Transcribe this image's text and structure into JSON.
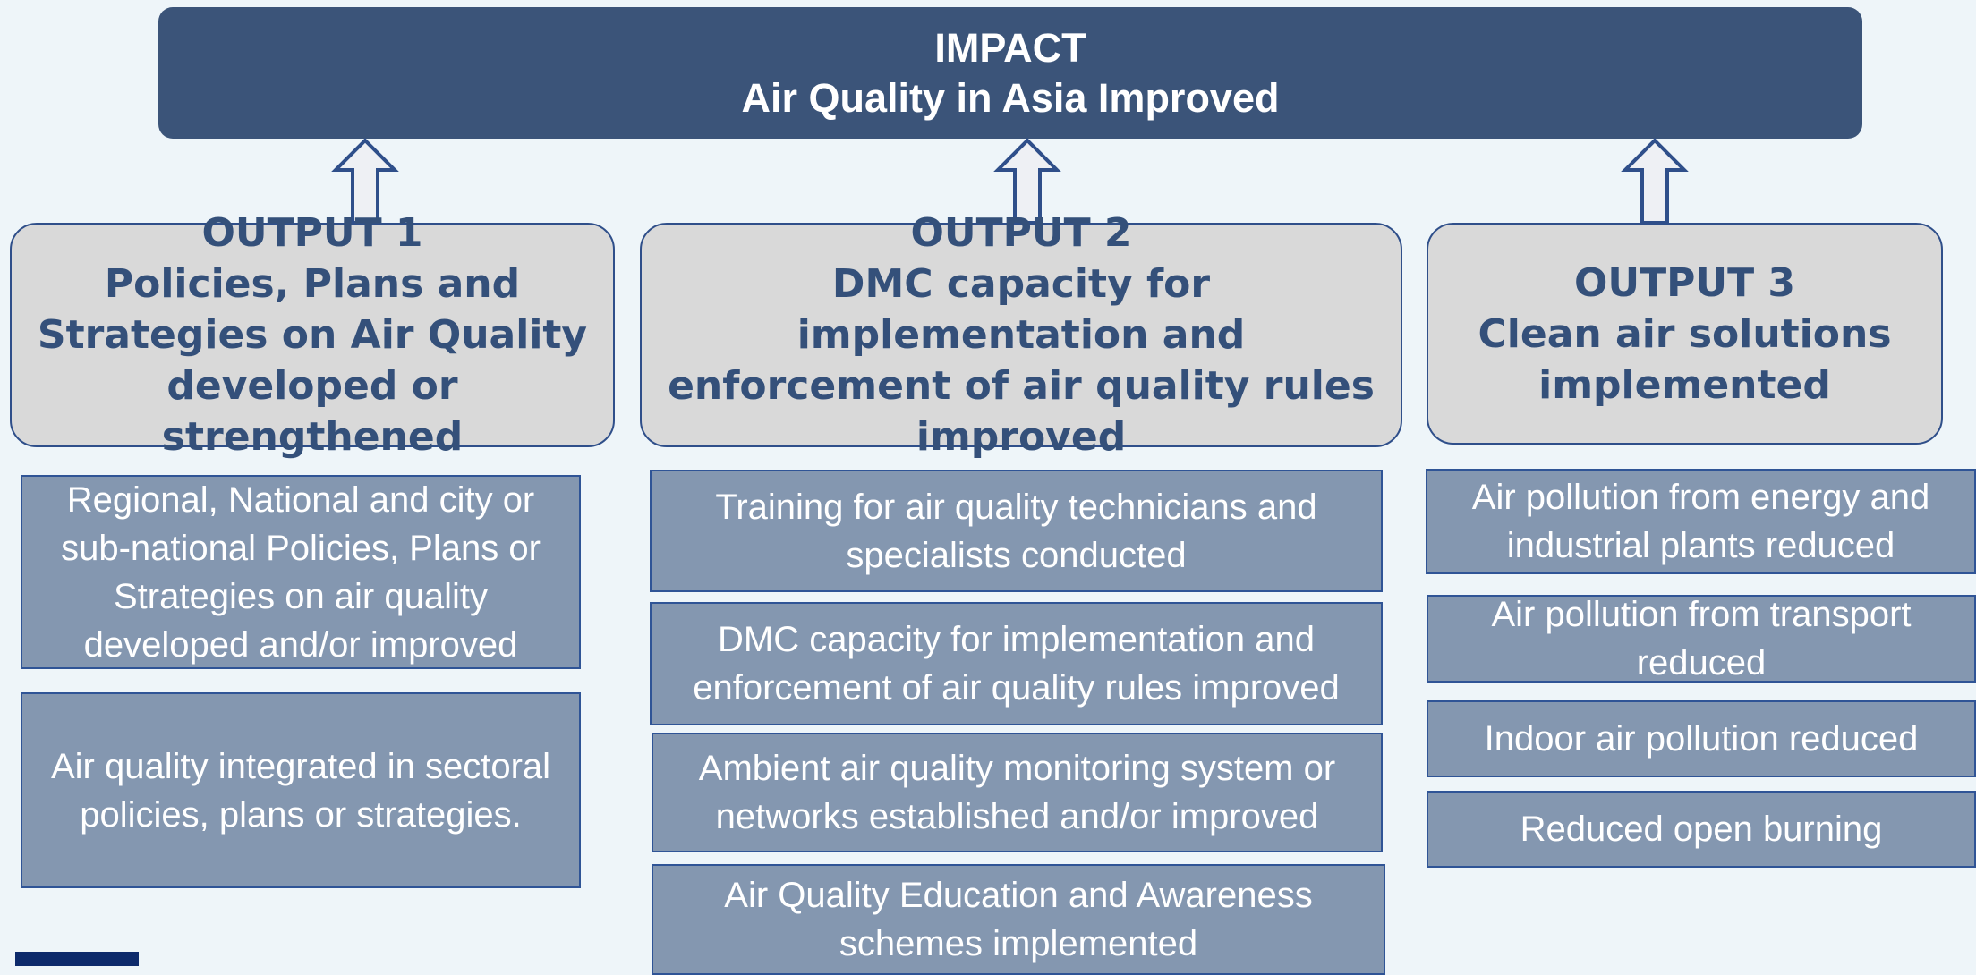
{
  "impact": {
    "label": "IMPACT",
    "text": "Air Quality in Asia Improved"
  },
  "outputs": [
    {
      "label": "OUTPUT 1",
      "text": "Policies, Plans and Strategies on Air Quality developed or strengthened",
      "activities": [
        "Regional, National and city or sub-national  Policies, Plans or Strategies on air quality developed and/or improved",
        "Air quality integrated in sectoral policies, plans or strategies."
      ]
    },
    {
      "label": "OUTPUT 2",
      "text": "DMC capacity for implementation and enforcement of air quality rules improved",
      "activities": [
        "Training for air quality technicians and specialists conducted",
        "DMC capacity for implementation and enforcement of air quality rules improved",
        "Ambient air quality monitoring system or networks established and/or improved",
        "Air Quality Education and Awareness schemes implemented"
      ]
    },
    {
      "label": "OUTPUT 3",
      "text": "Clean air solutions implemented",
      "activities": [
        "Air pollution from energy and industrial plants reduced",
        "Air pollution from transport reduced",
        "Indoor air pollution reduced",
        "Reduced open burning"
      ]
    }
  ]
}
